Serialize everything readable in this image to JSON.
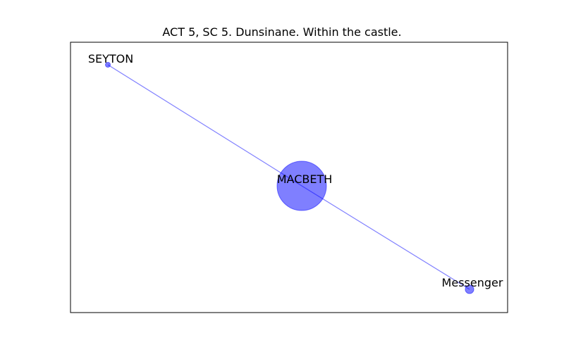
{
  "title": "ACT 5, SC 5. Dunsinane. Within the castle.",
  "colors": {
    "node_fill": "#0000ff",
    "edge": "#0000ff",
    "frame": "#000000",
    "background": "#ffffff"
  },
  "graph": {
    "nodes": [
      {
        "id": "SEYTON",
        "label": "SEYTON",
        "weight": 1
      },
      {
        "id": "MACBETH",
        "label": "MACBETH",
        "weight": 100
      },
      {
        "id": "Messenger",
        "label": "Messenger",
        "weight": 3
      }
    ],
    "edges": [
      {
        "source": "SEYTON",
        "target": "MACBETH"
      },
      {
        "source": "MACBETH",
        "target": "Messenger"
      }
    ]
  }
}
